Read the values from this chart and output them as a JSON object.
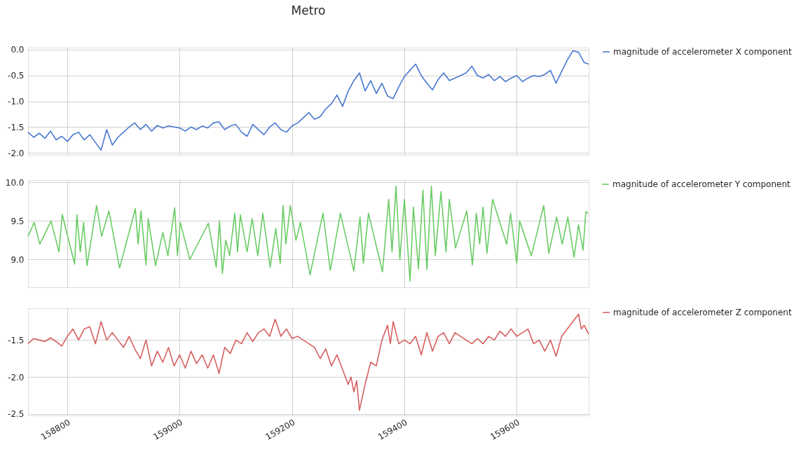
{
  "chart_data": [
    {
      "type": "line",
      "title": "Metro",
      "x": [
        158730,
        158740,
        158750,
        158760,
        158770,
        158780,
        158790,
        158800,
        158810,
        158820,
        158830,
        158840,
        158850,
        158860,
        158870,
        158880,
        158890,
        158900,
        158910,
        158920,
        158930,
        158940,
        158950,
        158960,
        158970,
        158980,
        158990,
        159000,
        159010,
        159020,
        159030,
        159040,
        159050,
        159060,
        159070,
        159080,
        159090,
        159100,
        159110,
        159120,
        159130,
        159140,
        159150,
        159160,
        159170,
        159180,
        159190,
        159200,
        159210,
        159220,
        159230,
        159240,
        159250,
        159260,
        159270,
        159280,
        159290,
        159300,
        159310,
        159320,
        159330,
        159340,
        159350,
        159360,
        159370,
        159380,
        159390,
        159400,
        159410,
        159420,
        159430,
        159440,
        159450,
        159460,
        159470,
        159480,
        159490,
        159500,
        159510,
        159520,
        159530,
        159540,
        159550,
        159560,
        159570,
        159580,
        159590,
        159600,
        159610,
        159620,
        159630,
        159640,
        159650,
        159660,
        159670,
        159680,
        159690,
        159700,
        159710,
        159720,
        159728
      ],
      "series": [
        {
          "name": "magnitude of accelerometer X component",
          "color": "#4878cf",
          "values": [
            -1.6,
            -1.7,
            -1.62,
            -1.72,
            -1.58,
            -1.75,
            -1.68,
            -1.78,
            -1.65,
            -1.6,
            -1.75,
            -1.65,
            -1.8,
            -1.95,
            -1.55,
            -1.85,
            -1.7,
            -1.6,
            -1.5,
            -1.42,
            -1.55,
            -1.45,
            -1.58,
            -1.47,
            -1.52,
            -1.48,
            -1.5,
            -1.52,
            -1.58,
            -1.5,
            -1.55,
            -1.48,
            -1.52,
            -1.42,
            -1.4,
            -1.55,
            -1.48,
            -1.45,
            -1.6,
            -1.68,
            -1.45,
            -1.55,
            -1.65,
            -1.5,
            -1.42,
            -1.55,
            -1.6,
            -1.48,
            -1.42,
            -1.32,
            -1.22,
            -1.35,
            -1.3,
            -1.15,
            -1.05,
            -0.88,
            -1.1,
            -0.8,
            -0.6,
            -0.45,
            -0.8,
            -0.6,
            -0.85,
            -0.65,
            -0.9,
            -0.95,
            -0.72,
            -0.52,
            -0.4,
            -0.28,
            -0.5,
            -0.65,
            -0.78,
            -0.58,
            -0.45,
            -0.6,
            -0.55,
            -0.5,
            -0.45,
            -0.32,
            -0.5,
            -0.55,
            -0.48,
            -0.6,
            -0.52,
            -0.62,
            -0.55,
            -0.5,
            -0.62,
            -0.55,
            -0.5,
            -0.52,
            -0.48,
            -0.4,
            -0.65,
            -0.42,
            -0.2,
            -0.02,
            -0.05,
            -0.25,
            -0.28
          ]
        }
      ],
      "xlim": [
        158730,
        159728
      ],
      "xticks": [
        158800,
        159000,
        159200,
        159400,
        159600
      ],
      "ylim": [
        -2.04,
        0.04
      ],
      "yticks": [
        {
          "value": -2,
          "label": "-2.0"
        },
        {
          "value": -1.5,
          "label": "-1.5"
        },
        {
          "value": -1,
          "label": "-1.0"
        },
        {
          "value": -0.5,
          "label": "-0.5"
        },
        {
          "value": 0,
          "label": "0.0"
        }
      ],
      "grid": true,
      "legend": "right",
      "tick_labels": "y"
    },
    {
      "type": "line",
      "x": [
        158730,
        158741,
        158751,
        158771,
        158785,
        158791,
        158813,
        158817,
        158823,
        158829,
        158835,
        158852,
        158861,
        158874,
        158893,
        158921,
        158926,
        158931,
        158940,
        158944,
        158957,
        158970,
        158979,
        158991,
        158996,
        159001,
        159018,
        159051,
        159065,
        159071,
        159076,
        159082,
        159089,
        159098,
        159103,
        159108,
        159120,
        159129,
        159139,
        159148,
        159161,
        159171,
        159179,
        159184,
        159189,
        159197,
        159207,
        159215,
        159232,
        159255,
        159268,
        159286,
        159310,
        159321,
        159327,
        159336,
        159361,
        159372,
        159378,
        159385,
        159392,
        159400,
        159410,
        159416,
        159425,
        159433,
        159440,
        159448,
        159455,
        159465,
        159474,
        159480,
        159491,
        159511,
        159521,
        159528,
        159534,
        159540,
        159547,
        159557,
        159582,
        159589,
        159600,
        159605,
        159626,
        159648,
        159657,
        159671,
        159681,
        159691,
        159702,
        159710,
        159718,
        159723,
        159727
      ],
      "series": [
        {
          "name": "magnitude of accelerometer Y component",
          "color": "#6acc65",
          "values": [
            9.3,
            9.48,
            9.2,
            9.5,
            9.1,
            9.58,
            8.94,
            9.58,
            9.1,
            9.48,
            8.92,
            9.7,
            9.3,
            9.63,
            8.89,
            9.66,
            9.2,
            9.63,
            8.93,
            9.53,
            8.92,
            9.35,
            9.05,
            9.67,
            9.05,
            9.48,
            9.0,
            9.47,
            8.9,
            9.5,
            8.82,
            9.25,
            9.05,
            9.6,
            9.1,
            9.58,
            9.1,
            9.53,
            9.05,
            9.6,
            8.9,
            9.4,
            8.95,
            9.7,
            9.2,
            9.7,
            9.25,
            9.48,
            8.8,
            9.6,
            8.86,
            9.6,
            8.85,
            9.55,
            8.95,
            9.6,
            8.84,
            9.78,
            9.1,
            9.95,
            9.0,
            9.78,
            8.72,
            9.68,
            8.88,
            9.9,
            8.87,
            9.95,
            9.05,
            9.88,
            9.1,
            9.78,
            9.15,
            9.63,
            8.93,
            9.6,
            9.2,
            9.68,
            9.08,
            9.78,
            9.2,
            9.6,
            8.95,
            9.5,
            9.05,
            9.7,
            9.08,
            9.55,
            9.2,
            9.55,
            9.03,
            9.45,
            9.12,
            9.62,
            9.6
          ]
        }
      ],
      "xlim": [
        158730,
        159728
      ],
      "xticks": [
        158800,
        159000,
        159200,
        159400,
        159600
      ],
      "ylim": [
        8.64,
        10.03
      ],
      "yticks": [
        {
          "value": 9,
          "label": "9.0"
        },
        {
          "value": 9.5,
          "label": "9.5"
        },
        {
          "value": 10,
          "label": "10.0"
        }
      ],
      "grid": true,
      "legend": "right",
      "tick_labels": "y"
    },
    {
      "type": "line",
      "x": [
        158730,
        158740,
        158750,
        158760,
        158770,
        158780,
        158790,
        158800,
        158810,
        158820,
        158830,
        158840,
        158850,
        158860,
        158870,
        158880,
        158890,
        158900,
        158910,
        158920,
        158930,
        158940,
        158950,
        158960,
        158970,
        158980,
        158990,
        159000,
        159010,
        159020,
        159030,
        159040,
        159050,
        159060,
        159070,
        159080,
        159090,
        159100,
        159110,
        159120,
        159130,
        159140,
        159150,
        159160,
        159170,
        159180,
        159190,
        159200,
        159210,
        159220,
        159230,
        159240,
        159250,
        159260,
        159270,
        159280,
        159290,
        159300,
        159305,
        159310,
        159315,
        159320,
        159330,
        159340,
        159350,
        159360,
        159370,
        159375,
        159380,
        159390,
        159400,
        159410,
        159420,
        159430,
        159440,
        159450,
        159460,
        159470,
        159480,
        159490,
        159500,
        159510,
        159520,
        159530,
        159540,
        159550,
        159560,
        159570,
        159580,
        159590,
        159600,
        159610,
        159620,
        159630,
        159640,
        159650,
        159660,
        159670,
        159680,
        159690,
        159700,
        159710,
        159715,
        159720,
        159728
      ],
      "series": [
        {
          "name": "magnitude of accelerometer Z component",
          "color": "#d65f5f",
          "values": [
            -1.55,
            -1.48,
            -1.5,
            -1.52,
            -1.47,
            -1.52,
            -1.58,
            -1.45,
            -1.35,
            -1.5,
            -1.35,
            -1.32,
            -1.55,
            -1.25,
            -1.5,
            -1.4,
            -1.5,
            -1.6,
            -1.45,
            -1.62,
            -1.75,
            -1.5,
            -1.85,
            -1.65,
            -1.8,
            -1.6,
            -1.85,
            -1.7,
            -1.88,
            -1.65,
            -1.82,
            -1.7,
            -1.88,
            -1.7,
            -1.95,
            -1.6,
            -1.68,
            -1.5,
            -1.55,
            -1.4,
            -1.52,
            -1.4,
            -1.35,
            -1.45,
            -1.22,
            -1.45,
            -1.35,
            -1.48,
            -1.45,
            -1.5,
            -1.55,
            -1.6,
            -1.75,
            -1.62,
            -1.85,
            -1.7,
            -1.9,
            -2.1,
            -2.0,
            -2.2,
            -2.05,
            -2.45,
            -2.1,
            -1.8,
            -1.85,
            -1.5,
            -1.3,
            -1.55,
            -1.25,
            -1.55,
            -1.5,
            -1.55,
            -1.45,
            -1.7,
            -1.4,
            -1.65,
            -1.45,
            -1.4,
            -1.55,
            -1.4,
            -1.45,
            -1.5,
            -1.55,
            -1.48,
            -1.55,
            -1.45,
            -1.5,
            -1.38,
            -1.45,
            -1.35,
            -1.45,
            -1.4,
            -1.35,
            -1.55,
            -1.5,
            -1.65,
            -1.5,
            -1.72,
            -1.45,
            -1.35,
            -1.25,
            -1.15,
            -1.35,
            -1.3,
            -1.42
          ]
        }
      ],
      "xlim": [
        158730,
        159728
      ],
      "xticks": [
        158800,
        159000,
        159200,
        159400,
        159600
      ],
      "ylim": [
        -2.52,
        -1.07
      ],
      "yticks": [
        {
          "value": -2.5,
          "label": "-2.5"
        },
        {
          "value": -2,
          "label": "-2.0"
        },
        {
          "value": -1.5,
          "label": "-1.5"
        }
      ],
      "grid": true,
      "legend": "right"
    }
  ]
}
